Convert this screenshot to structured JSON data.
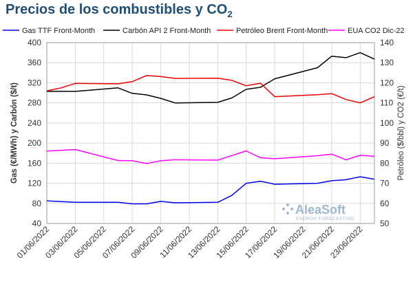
{
  "title_main": "Precios de los combustibles y CO",
  "title_sub": "2",
  "watermark": {
    "brand": "AleaSoft",
    "tagline": "ENERGY FORECASTING"
  },
  "chart_data": {
    "type": "line",
    "title": "Precios de los combustibles y CO2",
    "ylabel_left": "Gas (€/MWh) y Carbón ($/t)",
    "ylabel_right": "Petróleo ($/bbl) y CO2 (€/t)",
    "ylim_left": [
      40,
      400
    ],
    "ylim_right": [
      50,
      140
    ],
    "yticks_left": [
      40,
      80,
      120,
      160,
      200,
      240,
      280,
      320,
      360,
      400
    ],
    "yticks_right": [
      50,
      60,
      70,
      80,
      90,
      100,
      110,
      120,
      130,
      140
    ],
    "grid": true,
    "legend_position": "top",
    "x": [
      "01/06/2022",
      "02/06/2022",
      "03/06/2022",
      "06/06/2022",
      "07/06/2022",
      "08/06/2022",
      "09/06/2022",
      "10/06/2022",
      "13/06/2022",
      "14/06/2022",
      "15/06/2022",
      "16/06/2022",
      "17/06/2022",
      "20/06/2022",
      "21/06/2022",
      "22/06/2022",
      "23/06/2022",
      "24/06/2022"
    ],
    "xticks": [
      "01/06/2022",
      "03/06/2022",
      "05/06/2022",
      "07/06/2022",
      "09/06/2022",
      "11/06/2022",
      "13/06/2022",
      "15/06/2022",
      "17/06/2022",
      "19/06/2022",
      "21/06/2022",
      "23/06/2022"
    ],
    "series": [
      {
        "name": "Gas TTF Front-Month",
        "axis": "left",
        "color": "#0000ee",
        "x": [
          "01/06/2022",
          "03/06/2022",
          "06/06/2022",
          "07/06/2022",
          "08/06/2022",
          "09/06/2022",
          "10/06/2022",
          "13/06/2022",
          "14/06/2022",
          "15/06/2022",
          "16/06/2022",
          "17/06/2022",
          "20/06/2022",
          "21/06/2022",
          "22/06/2022",
          "23/06/2022",
          "24/06/2022"
        ],
        "values": [
          85,
          82,
          82,
          79,
          79,
          84,
          81,
          82,
          96,
          120,
          124,
          118,
          120,
          125,
          127,
          133,
          128
        ]
      },
      {
        "name": "Carbón API 2 Front-Month",
        "axis": "left",
        "color": "#000000",
        "x": [
          "01/06/2022",
          "02/06/2022",
          "03/06/2022",
          "06/06/2022",
          "07/06/2022",
          "08/06/2022",
          "09/06/2022",
          "10/06/2022",
          "13/06/2022",
          "14/06/2022",
          "15/06/2022",
          "16/06/2022",
          "17/06/2022",
          "20/06/2022",
          "21/06/2022",
          "22/06/2022",
          "23/06/2022",
          "24/06/2022"
        ],
        "values": [
          303,
          303,
          303,
          310,
          299,
          296,
          289,
          280,
          281,
          290,
          307,
          311,
          328,
          350,
          373,
          370,
          380,
          367
        ]
      },
      {
        "name": "Petróleo Brent Front-Month",
        "axis": "right",
        "color": "#ee0000",
        "x": [
          "01/06/2022",
          "02/06/2022",
          "03/06/2022",
          "06/06/2022",
          "07/06/2022",
          "08/06/2022",
          "09/06/2022",
          "10/06/2022",
          "13/06/2022",
          "14/06/2022",
          "15/06/2022",
          "16/06/2022",
          "17/06/2022",
          "20/06/2022",
          "21/06/2022",
          "22/06/2022",
          "23/06/2022",
          "24/06/2022"
        ],
        "values": [
          116,
          117.5,
          119.7,
          119.5,
          120.6,
          123.6,
          123.1,
          122.2,
          122.3,
          121.2,
          118.5,
          119.8,
          113.1,
          114.1,
          114.6,
          111.7,
          110,
          113.1
        ]
      },
      {
        "name": "EUA CO2 Dic-22",
        "axis": "right",
        "color": "#ff00ff",
        "x": [
          "01/06/2022",
          "02/06/2022",
          "03/06/2022",
          "06/06/2022",
          "07/06/2022",
          "08/06/2022",
          "09/06/2022",
          "10/06/2022",
          "13/06/2022",
          "14/06/2022",
          "15/06/2022",
          "16/06/2022",
          "17/06/2022",
          "20/06/2022",
          "21/06/2022",
          "22/06/2022",
          "23/06/2022",
          "24/06/2022"
        ],
        "values": [
          86,
          86.4,
          86.8,
          81.3,
          81.2,
          79.8,
          81.2,
          81.7,
          81.5,
          83.8,
          86.1,
          82.7,
          82.2,
          83.7,
          84.5,
          81.7,
          83.9,
          83.4
        ]
      }
    ]
  }
}
